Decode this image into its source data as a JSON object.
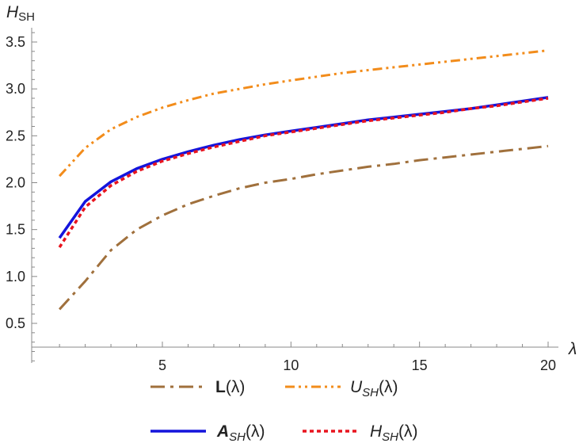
{
  "chart_data": {
    "type": "line",
    "ylabel": "H",
    "ylabel_sub": "SH",
    "xlabel": "λ",
    "xlim": [
      0,
      20
    ],
    "ylim": [
      0,
      3.65
    ],
    "x_ticks": [
      5,
      10,
      15,
      20
    ],
    "y_ticks": [
      0.5,
      1.0,
      1.5,
      2.0,
      2.5,
      3.0,
      3.5
    ],
    "x_tick_labels": [
      "5",
      "10",
      "15",
      "20"
    ],
    "y_tick_labels": [
      "0.5",
      "1.0",
      "1.5",
      "2.0",
      "2.5",
      "3.0",
      "3.5"
    ],
    "grid": false,
    "legend_position": "bottom",
    "series": [
      {
        "name": "L(λ)",
        "legend_main": "L",
        "legend_sub": "",
        "legend_suffix": "(λ)",
        "color": "#a0703c",
        "style": "long-dash-dot",
        "x": [
          1,
          2,
          3,
          4,
          5,
          6,
          7,
          8,
          9,
          10,
          11,
          12,
          13,
          14,
          15,
          16,
          17,
          18,
          19,
          20
        ],
        "values": [
          0.65,
          0.95,
          1.28,
          1.5,
          1.65,
          1.77,
          1.86,
          1.94,
          2.0,
          2.04,
          2.09,
          2.13,
          2.17,
          2.2,
          2.24,
          2.27,
          2.3,
          2.33,
          2.36,
          2.39
        ]
      },
      {
        "name": "U_SH(λ)",
        "legend_main": "U",
        "legend_sub": "SH",
        "legend_suffix": "(λ)",
        "color": "#f28c1b",
        "style": "dash-dot-dot",
        "x": [
          1,
          2,
          3,
          4,
          5,
          6,
          7,
          8,
          9,
          10,
          11,
          12,
          13,
          14,
          15,
          16,
          17,
          18,
          19,
          20
        ],
        "values": [
          2.07,
          2.37,
          2.57,
          2.7,
          2.8,
          2.88,
          2.95,
          3.0,
          3.05,
          3.09,
          3.13,
          3.17,
          3.2,
          3.23,
          3.26,
          3.29,
          3.32,
          3.35,
          3.38,
          3.41
        ]
      },
      {
        "name": "A_SH(λ)",
        "legend_main": "A",
        "legend_sub": "SH",
        "legend_suffix": "(λ)",
        "color": "#1414dc",
        "style": "solid",
        "x": [
          1,
          2,
          3,
          4,
          5,
          6,
          7,
          8,
          9,
          10,
          11,
          12,
          13,
          14,
          15,
          16,
          17,
          18,
          19,
          20
        ],
        "values": [
          1.41,
          1.8,
          2.01,
          2.15,
          2.25,
          2.33,
          2.4,
          2.46,
          2.51,
          2.55,
          2.59,
          2.63,
          2.67,
          2.7,
          2.73,
          2.76,
          2.79,
          2.83,
          2.87,
          2.91
        ]
      },
      {
        "name": "H_SH(λ)",
        "legend_main": "H",
        "legend_sub": "SH",
        "legend_suffix": "(λ)",
        "color": "#e8141e",
        "style": "dotted",
        "x": [
          1,
          2,
          3,
          4,
          5,
          6,
          7,
          8,
          9,
          10,
          11,
          12,
          13,
          14,
          15,
          16,
          17,
          18,
          19,
          20
        ],
        "values": [
          1.31,
          1.74,
          1.97,
          2.12,
          2.23,
          2.31,
          2.38,
          2.44,
          2.5,
          2.54,
          2.58,
          2.62,
          2.66,
          2.69,
          2.72,
          2.75,
          2.79,
          2.82,
          2.86,
          2.9
        ]
      }
    ]
  }
}
